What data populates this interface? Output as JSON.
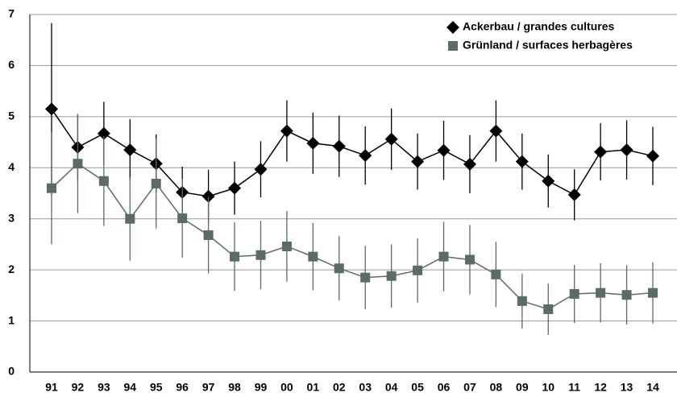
{
  "chart_data": {
    "type": "line",
    "categories": [
      "91",
      "92",
      "93",
      "94",
      "95",
      "96",
      "97",
      "98",
      "99",
      "00",
      "01",
      "02",
      "03",
      "04",
      "05",
      "06",
      "07",
      "08",
      "09",
      "10",
      "11",
      "12",
      "13",
      "14"
    ],
    "series": [
      {
        "name": "Ackerbau / grandes cultures",
        "color": "#000000",
        "marker": "diamond",
        "values": [
          5.15,
          4.4,
          4.67,
          4.35,
          4.08,
          3.52,
          3.44,
          3.6,
          3.97,
          4.72,
          4.48,
          4.42,
          4.24,
          4.56,
          4.12,
          4.34,
          4.07,
          4.72,
          4.12,
          3.74,
          3.47,
          4.31,
          4.35,
          4.23
        ],
        "errors": [
          1.68,
          0.65,
          0.62,
          0.6,
          0.57,
          0.5,
          0.52,
          0.52,
          0.55,
          0.6,
          0.6,
          0.6,
          0.57,
          0.6,
          0.55,
          0.58,
          0.57,
          0.6,
          0.55,
          0.52,
          0.5,
          0.56,
          0.58,
          0.57
        ]
      },
      {
        "name": "Grünland / surfaces herbagères",
        "color": "#5b6b67",
        "marker": "square",
        "values": [
          3.6,
          4.08,
          3.74,
          3.0,
          3.69,
          3.01,
          2.68,
          2.26,
          2.29,
          2.46,
          2.26,
          2.03,
          1.85,
          1.88,
          1.99,
          2.26,
          2.2,
          1.91,
          1.39,
          1.23,
          1.53,
          1.55,
          1.51,
          1.55
        ],
        "errors": [
          1.1,
          0.97,
          0.88,
          0.82,
          0.88,
          0.77,
          0.75,
          0.67,
          0.67,
          0.69,
          0.66,
          0.63,
          0.62,
          0.62,
          0.63,
          0.68,
          0.68,
          0.64,
          0.54,
          0.5,
          0.57,
          0.58,
          0.58,
          0.6
        ]
      }
    ],
    "ylim": [
      0,
      7
    ],
    "yticks": [
      0,
      1,
      2,
      3,
      4,
      5,
      6,
      7
    ],
    "grid": true,
    "legend": "top-right"
  }
}
